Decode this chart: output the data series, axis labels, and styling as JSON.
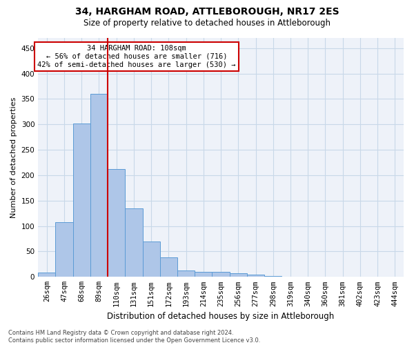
{
  "title": "34, HARGHAM ROAD, ATTLEBOROUGH, NR17 2ES",
  "subtitle": "Size of property relative to detached houses in Attleborough",
  "xlabel": "Distribution of detached houses by size in Attleborough",
  "ylabel": "Number of detached properties",
  "bin_labels": [
    "26sqm",
    "47sqm",
    "68sqm",
    "89sqm",
    "110sqm",
    "131sqm",
    "151sqm",
    "172sqm",
    "193sqm",
    "214sqm",
    "235sqm",
    "256sqm",
    "277sqm",
    "298sqm",
    "319sqm",
    "340sqm",
    "360sqm",
    "381sqm",
    "402sqm",
    "423sqm",
    "444sqm"
  ],
  "bar_values": [
    8,
    108,
    302,
    360,
    212,
    135,
    70,
    38,
    13,
    10,
    10,
    7,
    5,
    2,
    1,
    1,
    1,
    0,
    0,
    0,
    0
  ],
  "bar_color": "#aec6e8",
  "bar_edge_color": "#5b9bd5",
  "vline_color": "#cc0000",
  "annotation_text": "34 HARGHAM ROAD: 108sqm\n← 56% of detached houses are smaller (716)\n42% of semi-detached houses are larger (530) →",
  "annotation_box_facecolor": "#ffffff",
  "annotation_box_edgecolor": "#cc0000",
  "ylim": [
    0,
    470
  ],
  "yticks": [
    0,
    50,
    100,
    150,
    200,
    250,
    300,
    350,
    400,
    450
  ],
  "grid_color": "#c8d8e8",
  "background_color": "#eef2f9",
  "title_fontsize": 10,
  "subtitle_fontsize": 8.5,
  "xlabel_fontsize": 8.5,
  "ylabel_fontsize": 8,
  "tick_fontsize": 7.5,
  "footnote": "Contains HM Land Registry data © Crown copyright and database right 2024.\nContains public sector information licensed under the Open Government Licence v3.0.",
  "footnote_fontsize": 6
}
